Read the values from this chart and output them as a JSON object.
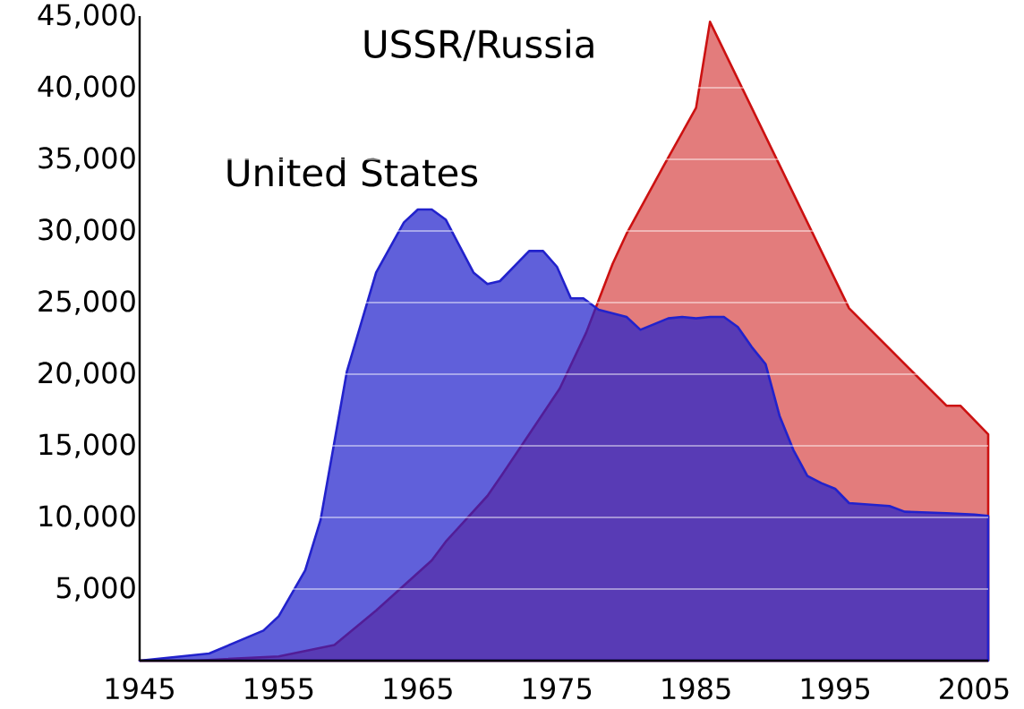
{
  "chart_data": {
    "type": "area",
    "xlim": [
      1945,
      2006
    ],
    "ylim": [
      0,
      45000
    ],
    "xticks": [
      1945,
      1955,
      1965,
      1975,
      1985,
      1995,
      2005
    ],
    "yticks": [
      {
        "value": 5000,
        "label": "5,000"
      },
      {
        "value": 10000,
        "label": "10,000"
      },
      {
        "value": 15000,
        "label": "15,000"
      },
      {
        "value": 20000,
        "label": "20,000"
      },
      {
        "value": 25000,
        "label": "25,000"
      },
      {
        "value": 30000,
        "label": "30,000"
      },
      {
        "value": 35000,
        "label": "35,000"
      },
      {
        "value": 40000,
        "label": "40,000"
      },
      {
        "value": 45000,
        "label": "45,000"
      }
    ],
    "grid": "y",
    "legend": false,
    "marker": "none",
    "series": [
      {
        "name": "USSR/Russia",
        "color": "#cc1111",
        "x": [
          1945,
          1949,
          1955,
          1959,
          1962,
          1966,
          1967,
          1970,
          1971,
          1975.2,
          1977.1,
          1979,
          1980,
          1982.7,
          1985,
          1986,
          1996,
          2003,
          2004,
          2006
        ],
        "values": [
          0,
          0,
          300,
          1100,
          3500,
          7000,
          8300,
          11500,
          12900,
          19000,
          22900,
          27700,
          29800,
          34600,
          38600,
          44600,
          24600,
          17800,
          17800,
          15800
        ]
      },
      {
        "name": "United States",
        "color": "#2222cc",
        "x": [
          1945,
          1950,
          1953.9,
          1955,
          1956.9,
          1958,
          1959.9,
          1962,
          1964,
          1965,
          1966,
          1967,
          1969,
          1970,
          1970.9,
          1973,
          1974,
          1975,
          1976,
          1976.9,
          1978,
          1980,
          1981,
          1983,
          1984,
          1985,
          1986,
          1987,
          1988,
          1989,
          1990,
          1991,
          1992,
          1993,
          1994,
          1995,
          1996,
          1998.9,
          2000,
          2003,
          2005,
          2006
        ],
        "values": [
          0,
          500,
          2100,
          3100,
          6300,
          9800,
          20200,
          27100,
          30600,
          31500,
          31500,
          30800,
          27100,
          26300,
          26500,
          28600,
          28600,
          27500,
          25300,
          25300,
          24500,
          24000,
          23100,
          23900,
          24000,
          23900,
          24000,
          24000,
          23300,
          21900,
          20700,
          17100,
          14700,
          12900,
          12400,
          12000,
          11000,
          10800,
          10400,
          10300,
          10200,
          10100
        ]
      }
    ]
  }
}
